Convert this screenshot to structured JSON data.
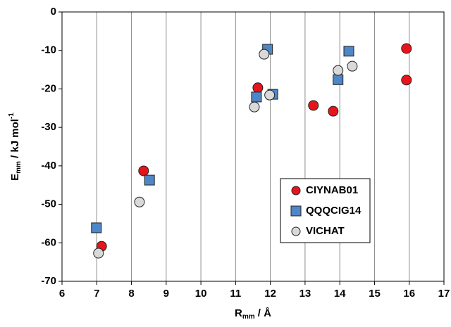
{
  "chart_data": {
    "type": "scatter",
    "xlabel": {
      "main": "R",
      "sub": "mm",
      "rest": " / Å"
    },
    "ylabel": {
      "main": "E",
      "sub": "mm",
      "rest": " / kJ mol",
      "sup": "-1"
    },
    "xlim": [
      6,
      17
    ],
    "xticks": [
      6,
      7,
      8,
      9,
      10,
      11,
      12,
      13,
      14,
      15,
      16,
      17
    ],
    "ylim": [
      -70,
      0
    ],
    "yticks": [
      -70,
      -60,
      -50,
      -40,
      -30,
      -20,
      -10,
      0
    ],
    "grid": "x",
    "legend": "lower right",
    "series": [
      {
        "name": "CIYNAB01",
        "color": "#e8141b",
        "marker": "circle",
        "x": [
          7.14,
          8.35,
          11.64,
          13.24,
          13.81,
          15.92,
          15.92
        ],
        "values": [
          -60.9,
          -41.3,
          -19.7,
          -24.3,
          -25.8,
          -9.5,
          -17.7
        ]
      },
      {
        "name": "QQQCIG14",
        "color": "#4f86c6",
        "marker": "square",
        "x": [
          6.99,
          8.52,
          11.92,
          11.6,
          12.07,
          13.95,
          14.26
        ],
        "values": [
          -56.1,
          -43.7,
          -9.7,
          -22.1,
          -21.4,
          -17.6,
          -10.2
        ]
      },
      {
        "name": "VICHAT",
        "color": "#d9d9d9",
        "marker": "circle",
        "x": [
          7.05,
          8.23,
          11.82,
          11.54,
          11.98,
          13.95,
          14.36
        ],
        "values": [
          -62.7,
          -49.4,
          -11.0,
          -24.7,
          -21.6,
          -15.2,
          -14.1
        ]
      }
    ]
  }
}
